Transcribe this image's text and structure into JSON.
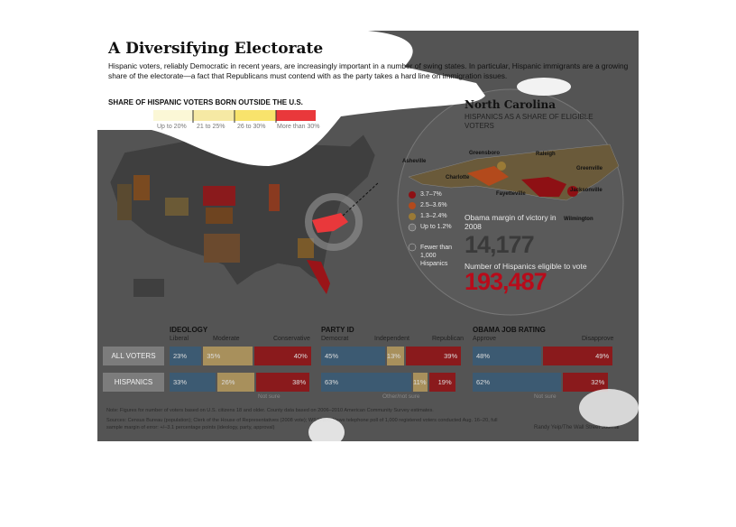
{
  "header": {
    "title": "A Diversifying Electorate",
    "intro": "Hispanic voters, reliably Democratic in recent years, are increasingly important in a number of swing states. In particular, Hispanic immigrants are a growing share of the electorate—a fact that Republicans must contend with as the party takes a hard line on immigration issues."
  },
  "map_legend": {
    "title": "SHARE OF HISPANIC VOTERS BORN OUTSIDE THE U.S.",
    "items": [
      {
        "label": "Up to 20%",
        "color": "#fbf7d6"
      },
      {
        "label": "21 to 25%",
        "color": "#f6e9a4"
      },
      {
        "label": "26 to 30%",
        "color": "#f8e36c"
      },
      {
        "label": "More than 30%",
        "color": "#e9383b"
      }
    ]
  },
  "north_carolina": {
    "title": "North Carolina",
    "subtitle": "HISPANICS AS A SHARE OF ELIGIBLE VOTERS",
    "cities": [
      "Asheville",
      "Greensboro",
      "Raleigh",
      "Greenville",
      "Charlotte",
      "Fayetteville",
      "Jacksonville",
      "Wilmington"
    ],
    "legend": [
      "3.7–7%",
      "2.5–3.6%",
      "1.3–2.4%",
      "Up to 1.2%",
      "Fewer than 1,000 Hispanics"
    ],
    "legend_colors": [
      "#8e1014",
      "#b34a1c",
      "#9a7a36",
      "#6e6e6e",
      "#5a5a5a"
    ],
    "margin_label": "Obama margin of victory in 2008",
    "margin_value": "14,177",
    "eligible_label": "Number of Hispanics eligible to vote",
    "eligible_value": "193,487"
  },
  "chart_data": [
    {
      "type": "bar",
      "title": "IDEOLOGY",
      "categories": [
        "ALL VOTERS",
        "HISPANICS"
      ],
      "series": [
        {
          "name": "Liberal",
          "values": [
            23,
            33
          ]
        },
        {
          "name": "Moderate",
          "values": [
            35,
            26
          ]
        },
        {
          "name": "Conservative",
          "values": [
            40,
            38
          ]
        }
      ]
    },
    {
      "type": "bar",
      "title": "PARTY ID",
      "categories": [
        "ALL VOTERS",
        "HISPANICS"
      ],
      "series": [
        {
          "name": "Democrat",
          "values": [
            45,
            63
          ]
        },
        {
          "name": "Independent",
          "values": [
            13,
            11
          ]
        },
        {
          "name": "Republican",
          "values": [
            39,
            19
          ]
        }
      ]
    },
    {
      "type": "bar",
      "title": "OBAMA JOB RATING",
      "categories": [
        "ALL VOTERS",
        "HISPANICS"
      ],
      "series": [
        {
          "name": "Approve",
          "values": [
            48,
            62
          ]
        },
        {
          "name": "Disapprove",
          "values": [
            49,
            32
          ]
        }
      ]
    }
  ],
  "bars": {
    "row_labels": [
      "ALL VOTERS",
      "HISPANICS"
    ],
    "ideology": {
      "title": "IDEOLOGY",
      "sub": [
        "Liberal",
        "Moderate",
        "Conservative"
      ]
    },
    "party": {
      "title": "PARTY ID",
      "sub": [
        "Democrat",
        "Independent",
        "Republican"
      ]
    },
    "obama": {
      "title": "OBAMA JOB RATING",
      "sub": [
        "Approve",
        "Disapprove"
      ]
    },
    "all_voters": [
      "23%",
      "35%",
      "40%",
      "45%",
      "13%",
      "39%",
      "48%",
      "49%"
    ],
    "hispanics": [
      "33%",
      "26%",
      "38%",
      "63%",
      "11%",
      "19%",
      "62%",
      "32%"
    ],
    "not_sure": [
      "Not sure",
      "Other/not sure",
      "Not sure"
    ],
    "colors": {
      "blue": "#3c5a72",
      "tan": "#a8905c",
      "red": "#8a1a1c"
    }
  },
  "footer": {
    "note": "Note: Figures for number of voters based on U.S. citizens 18 and older. County data based on 2006–2010 American Community Survey estimates.",
    "sources": "Sources: Census Bureau (population); Clerk of the House of Representatives (2008 vote); WSJ/NBC News telephone poll of 1,000 registered voters conducted Aug. 16–20, full sample margin of error: +/–3.1 percentage points (ideology, party, approval)",
    "credit": "Randy Yeip/The Wall Street Journal"
  }
}
